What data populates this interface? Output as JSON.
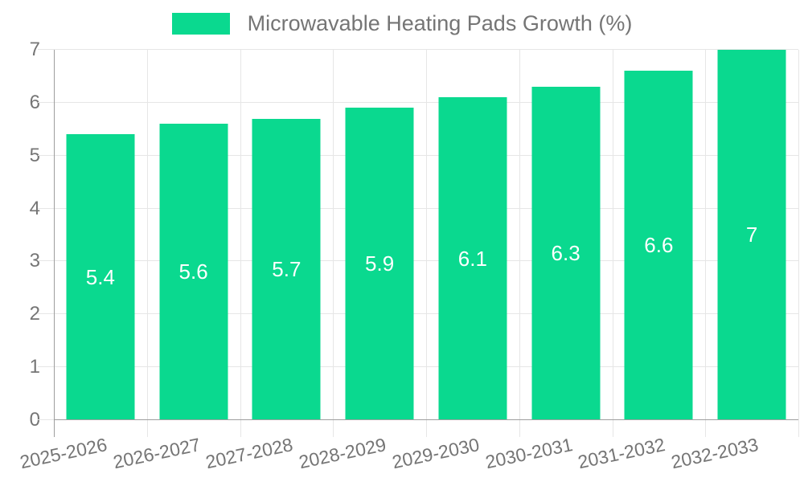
{
  "chart_data": {
    "type": "bar",
    "title": "Microwavable Heating Pads Growth (%)",
    "legend_label": "Microwavable Heating Pads Growth (%)",
    "legend_position": "top",
    "categories": [
      "2025-2026",
      "2026-2027",
      "2027-2028",
      "2028-2029",
      "2029-2030",
      "2030-2031",
      "2031-2032",
      "2032-2033"
    ],
    "values": [
      5.4,
      5.6,
      5.7,
      5.9,
      6.1,
      6.3,
      6.6,
      7
    ],
    "bar_value_labels": [
      "5.4",
      "5.6",
      "5.7",
      "5.9",
      "6.1",
      "6.3",
      "6.6",
      "7"
    ],
    "xlabel": "",
    "ylabel": "",
    "ylim": [
      0,
      7
    ],
    "yticks": [
      0,
      1,
      2,
      3,
      4,
      5,
      6,
      7
    ],
    "grid": true,
    "colors": {
      "bar": "#0ad98f",
      "bar_value_text": "#ffffff",
      "axis_line": "#9e9e9e",
      "grid_line": "#e6e6e6",
      "tick_text": "#757575",
      "legend_text": "#757575",
      "background": "#ffffff"
    }
  }
}
